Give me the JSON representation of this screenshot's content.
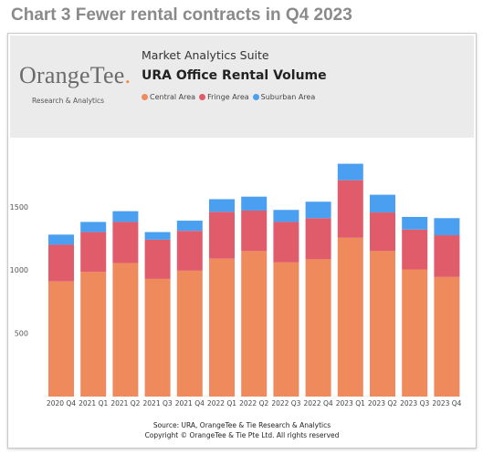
{
  "heading": "Chart 3 Fewer rental contracts in Q4 2023",
  "logo": {
    "word": "OrangeTee",
    "dot": ".",
    "subtitle": "Research & Analytics"
  },
  "header": {
    "suite": "Market Analytics Suite",
    "title": "URA Office Rental Volume"
  },
  "legend": [
    {
      "label": "Central Area",
      "color": "#ee8a5c"
    },
    {
      "label": "Fringe Area",
      "color": "#e05c6a"
    },
    {
      "label": "Suburban Area",
      "color": "#4a9ff0"
    }
  ],
  "footer": {
    "source": "Source: URA, OrangeTee & Tie Research & Analytics",
    "copyright": "Copyright © OrangeTee & Tie Pte Ltd. All rights reserved"
  },
  "chart_data": {
    "type": "bar",
    "stacked": true,
    "categories": [
      "2020 Q4",
      "2021 Q1",
      "2021 Q2",
      "2021 Q3",
      "2021 Q4",
      "2022 Q1",
      "2022 Q2",
      "2022 Q3",
      "2022 Q4",
      "2023 Q1",
      "2023 Q2",
      "2023 Q3",
      "2023 Q4"
    ],
    "series": [
      {
        "name": "Central Area",
        "color": "#ee8a5c",
        "values": [
          910,
          985,
          1055,
          930,
          995,
          1090,
          1150,
          1060,
          1085,
          1255,
          1150,
          1005,
          945
        ]
      },
      {
        "name": "Fringe Area",
        "color": "#e05c6a",
        "values": [
          290,
          315,
          325,
          310,
          315,
          370,
          320,
          320,
          325,
          455,
          305,
          315,
          330
        ]
      },
      {
        "name": "Suburban Area",
        "color": "#4a9ff0",
        "values": [
          80,
          80,
          85,
          60,
          80,
          100,
          110,
          95,
          130,
          130,
          140,
          100,
          135
        ]
      }
    ],
    "yticks": [
      500,
      1000,
      1500
    ],
    "ylim": [
      0,
      1950
    ],
    "grid": false,
    "legend_position": "top"
  }
}
